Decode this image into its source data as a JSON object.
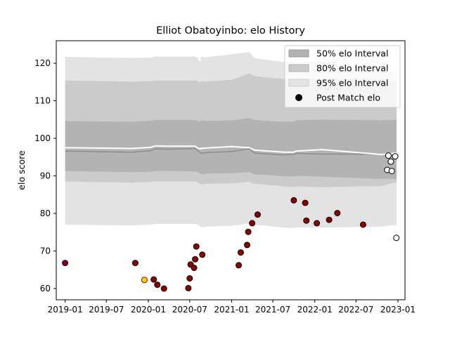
{
  "chart_data": {
    "type": "scatter",
    "title": "Elliot Obatoyinbo: elo History",
    "xlabel": "",
    "ylabel": "elo score",
    "xlim": [
      "2018-11-23",
      "2023-02-01"
    ],
    "ylim": [
      57,
      126
    ],
    "x_ticks": [
      "2019-01",
      "2019-07",
      "2020-01",
      "2020-07",
      "2021-01",
      "2021-07",
      "2022-01",
      "2022-07",
      "2023-01"
    ],
    "y_ticks": [
      60,
      70,
      80,
      90,
      100,
      110,
      120
    ],
    "legend": {
      "position": "top-right",
      "entries": [
        "50% elo Interval",
        "80% elo Interval",
        "95% elo Interval",
        "Post Match elo"
      ]
    },
    "colors": {
      "band50": "#b3b3b3",
      "band80": "#cbcbcb",
      "band95": "#e3e3e3",
      "median_line": "#ffffff",
      "mean_line": "#8c8c8c",
      "point_edge": "#000000",
      "point_fill_past": "#8b0000",
      "point_fill_future": "#ffffff"
    },
    "bands": {
      "x": [
        "2019-01-01",
        "2019-10-20",
        "2020-01-10",
        "2020-02-01",
        "2020-04-01",
        "2020-07-25",
        "2020-08-05",
        "2020-08-15",
        "2020-08-20",
        "2020-09-10",
        "2021-01-01",
        "2021-03-20",
        "2021-04-10",
        "2021-05-20",
        "2021-08-20",
        "2021-10-01",
        "2021-10-10",
        "2022-02-01",
        "2022-10-20",
        "2022-12-15",
        "2022-12-26"
      ],
      "mean": [
        96.6,
        96.3,
        96.7,
        97.2,
        97.1,
        97.3,
        96.7,
        96.3,
        96.0,
        96.2,
        96.5,
        97.2,
        96.1,
        95.9,
        95.6,
        95.7,
        96.0,
        95.8,
        95.8,
        95.9,
        95.9
      ],
      "median": [
        97.5,
        97.3,
        97.6,
        98.0,
        97.9,
        97.9,
        97.4,
        97.2,
        97.3,
        97.4,
        97.8,
        97.5,
        96.9,
        96.7,
        96.3,
        96.3,
        96.6,
        97.0,
        95.7,
        96.0,
        96.0
      ],
      "p50_low": [
        91.3,
        91.0,
        91.1,
        91.3,
        91.3,
        91.2,
        91.0,
        90.7,
        90.4,
        90.6,
        90.7,
        91.0,
        90.4,
        90.3,
        89.9,
        89.8,
        90.0,
        89.8,
        89.2,
        89.2,
        89.2
      ],
      "p50_high": [
        104.6,
        104.4,
        104.7,
        104.9,
        104.9,
        104.9,
        104.6,
        104.4,
        104.8,
        104.6,
        104.8,
        105.4,
        104.9,
        104.7,
        104.4,
        104.5,
        104.8,
        105.0,
        104.8,
        104.9,
        104.9
      ],
      "p80_low": [
        88.5,
        88.2,
        88.4,
        88.5,
        88.5,
        88.5,
        88.3,
        88.0,
        87.7,
        87.9,
        88.0,
        88.4,
        87.9,
        87.7,
        87.2,
        87.0,
        87.2,
        87.0,
        87.3,
        88.2,
        88.2
      ],
      "p80_high": [
        115.4,
        115.1,
        115.2,
        115.4,
        115.4,
        115.4,
        115.2,
        114.8,
        115.3,
        115.1,
        115.6,
        117.3,
        116.6,
        116.3,
        115.8,
        115.8,
        116.0,
        116.0,
        115.3,
        115.2,
        115.2
      ],
      "p95_low": [
        77.0,
        76.8,
        77.0,
        77.2,
        77.2,
        77.2,
        77.0,
        76.6,
        76.3,
        76.5,
        76.7,
        77.4,
        76.9,
        76.8,
        76.2,
        76.1,
        76.3,
        76.2,
        76.5,
        76.9,
        76.9
      ],
      "p95_high": [
        121.7,
        121.4,
        121.5,
        121.8,
        121.8,
        121.8,
        121.5,
        120.2,
        121.8,
        121.6,
        122.4,
        123.0,
        121.4,
        121.0,
        120.3,
        120.2,
        120.4,
        120.2,
        117.8,
        117.8,
        117.8
      ]
    },
    "points": [
      {
        "x": "2019-01-01",
        "y": 66.8,
        "fill": "#8b0000",
        "edge": "#000080"
      },
      {
        "x": "2019-11-05",
        "y": 66.8
      },
      {
        "x": "2019-12-15",
        "y": 62.3,
        "fill": "#ffd700",
        "edge": "#8b0000"
      },
      {
        "x": "2020-01-25",
        "y": 62.4
      },
      {
        "x": "2020-02-10",
        "y": 61.0
      },
      {
        "x": "2020-03-10",
        "y": 60.0
      },
      {
        "x": "2020-06-25",
        "y": 60.1
      },
      {
        "x": "2020-07-01",
        "y": 62.7
      },
      {
        "x": "2020-07-05",
        "y": 66.4
      },
      {
        "x": "2020-07-20",
        "y": 65.5
      },
      {
        "x": "2020-07-25",
        "y": 67.8
      },
      {
        "x": "2020-07-30",
        "y": 71.2
      },
      {
        "x": "2020-08-25",
        "y": 69.0
      },
      {
        "x": "2021-02-01",
        "y": 66.2
      },
      {
        "x": "2021-02-10",
        "y": 69.6
      },
      {
        "x": "2021-03-10",
        "y": 71.6
      },
      {
        "x": "2021-03-15",
        "y": 75.1
      },
      {
        "x": "2021-04-01",
        "y": 77.4
      },
      {
        "x": "2021-04-25",
        "y": 79.7
      },
      {
        "x": "2021-10-01",
        "y": 83.5
      },
      {
        "x": "2021-11-20",
        "y": 82.8
      },
      {
        "x": "2021-11-25",
        "y": 78.1
      },
      {
        "x": "2022-01-10",
        "y": 77.4
      },
      {
        "x": "2022-03-05",
        "y": 78.3
      },
      {
        "x": "2022-04-10",
        "y": 80.1
      },
      {
        "x": "2022-08-01",
        "y": 77.0
      },
      {
        "x": "2022-11-15",
        "y": 91.6,
        "fill": "#ffffff"
      },
      {
        "x": "2022-11-20",
        "y": 95.4,
        "fill": "#ffffff"
      },
      {
        "x": "2022-12-01",
        "y": 93.8,
        "fill": "#ffffff"
      },
      {
        "x": "2022-12-05",
        "y": 91.3,
        "fill": "#ffffff"
      },
      {
        "x": "2022-12-20",
        "y": 95.2,
        "fill": "#ffffff"
      },
      {
        "x": "2022-12-25",
        "y": 73.5,
        "fill": "#ffffff"
      }
    ]
  }
}
